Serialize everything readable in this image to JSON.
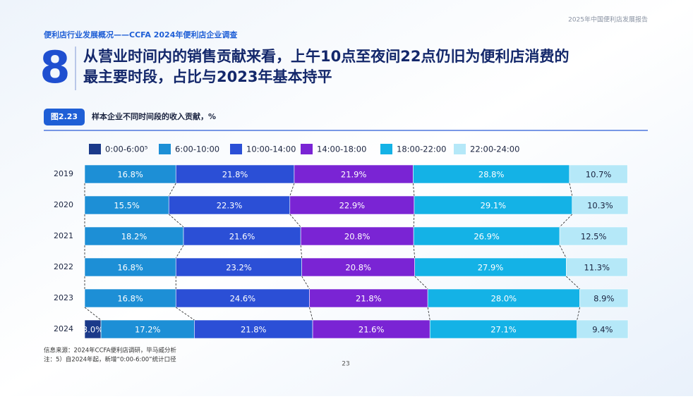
{
  "report_name": "2025年中国便利店发展报告",
  "section": "便利店行业发展概况——CCFA 2024年便利店企业调查",
  "slide_number": "8",
  "headline": [
    "从营业时间内的销售贡献来看，上午10点至夜间22点仍旧为便利店消费的",
    "最主要时段，占比与2023年基本持平"
  ],
  "source": "信息来源：2024年CCFA便利店调研，毕马威分析",
  "note": "注：5）自2024年起，新增“0:00-6:00”统计口径",
  "page_number": "23",
  "chart_data": {
    "type": "stacked-bar-horizontal",
    "figure_label": "图2.23",
    "title": "样本企业不同时间段的收入贡献，%",
    "categories": [
      "2019",
      "2020",
      "2021",
      "2022",
      "2023",
      "2024"
    ],
    "series": [
      {
        "name": "0:00-6:00⁵",
        "color": "#1b3a8a",
        "values": [
          null,
          null,
          null,
          null,
          null,
          3.0
        ],
        "value_labels": [
          null,
          null,
          null,
          null,
          null,
          "3.0%"
        ]
      },
      {
        "name": "6:00-10:00",
        "color": "#1d8fd6",
        "values": [
          16.8,
          15.5,
          18.2,
          16.8,
          16.8,
          17.2
        ],
        "value_labels": [
          "16.8%",
          "15.5%",
          "18.2%",
          "16.8%",
          "16.8%",
          "17.2%"
        ]
      },
      {
        "name": "10:00-14:00",
        "color": "#2b4fd6",
        "values": [
          21.8,
          22.3,
          21.6,
          23.2,
          24.6,
          21.8
        ],
        "value_labels": [
          "21.8%",
          "22.3%",
          "21.6%",
          "23.2%",
          "24.6%",
          "21.8%"
        ]
      },
      {
        "name": "14:00-18:00",
        "color": "#7a24d4",
        "values": [
          21.9,
          22.9,
          20.8,
          20.8,
          21.8,
          21.6
        ],
        "value_labels": [
          "21.9%",
          "22.9%",
          "20.8%",
          "20.8%",
          "21.8%",
          "21.6%"
        ]
      },
      {
        "name": "18:00-22:00",
        "color": "#14b2e6",
        "values": [
          28.8,
          29.1,
          26.9,
          27.9,
          28.0,
          27.1
        ],
        "value_labels": [
          "28.8%",
          "29.1%",
          "26.9%",
          "27.9%",
          "28.0%",
          "27.1%"
        ]
      },
      {
        "name": "22:00-24:00",
        "color": "#b5e8f8",
        "values": [
          10.7,
          10.3,
          12.5,
          11.3,
          8.9,
          9.4
        ],
        "value_labels": [
          "10.7%",
          "10.3%",
          "12.5%",
          "11.3%",
          "8.9%",
          "9.4%"
        ]
      }
    ]
  }
}
